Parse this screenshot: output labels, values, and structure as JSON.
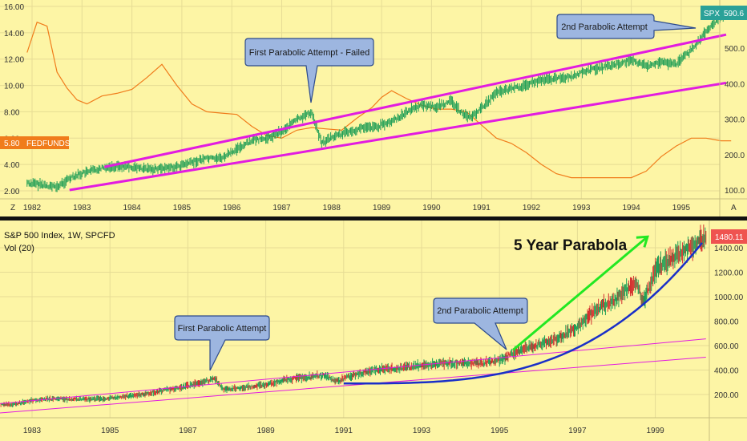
{
  "colors": {
    "background": "#fdf5a5",
    "grid": "#e6dc95",
    "candles": "#1e9e55",
    "fedfunds": "#f07c1b",
    "channel": "#e21ce0",
    "parabola": "#1a2fc8",
    "arrow": "#22e822",
    "callout_fill": "#9db6e0",
    "callout_stroke": "#2c4a8c",
    "spx_badge": "#2aa198",
    "last_price_badge": "#ef5350",
    "fedfunds_badge": "#f07c1b",
    "divider": "#111111"
  },
  "top": {
    "axis_corner_left": "Z",
    "axis_corner_right": "A",
    "spx_symbol": "SPX",
    "spx_value": "590.6",
    "fedfunds_value": "5.80",
    "fedfunds_label": "FEDFUNDS",
    "callout_first": "First Parabolic Attempt - Failed",
    "callout_second": "2nd Parabolic Attempt"
  },
  "bottom": {
    "legend_title": "S&P 500 Index, 1W, SPCFD",
    "legend_vol": "Vol (20)",
    "last_price": "1480.11",
    "headline": "5 Year Parabola",
    "callout_first": "First Parabolic Attempt",
    "callout_second": "2nd Parabolic Attempt"
  },
  "chart_data": [
    {
      "type": "line",
      "x_ticks": [
        "1982",
        "1983",
        "1984",
        "1985",
        "1986",
        "1987",
        "1988",
        "1989",
        "1990",
        "1991",
        "1992",
        "1993",
        "1994",
        "1995"
      ],
      "left_axis": {
        "ticks": [
          "2.00",
          "4.00",
          "6.00",
          "8.00",
          "10.00",
          "12.00",
          "14.00",
          "16.00"
        ],
        "ylim": [
          1.6,
          16.6
        ]
      },
      "right_axis": {
        "ticks": [
          "100.0",
          "200.0",
          "300.0",
          "400.0",
          "500.0"
        ],
        "ylim": [
          70,
          625
        ]
      },
      "series": [
        {
          "name": "FEDFUNDS",
          "axis": "left",
          "x": [
            1981.9,
            1982.1,
            1982.3,
            1982.5,
            1982.7,
            1982.9,
            1983.1,
            1983.4,
            1983.7,
            1984.0,
            1984.3,
            1984.6,
            1984.9,
            1985.2,
            1985.5,
            1985.8,
            1986.1,
            1986.4,
            1986.7,
            1987.0,
            1987.3,
            1987.6,
            1987.9,
            1988.2,
            1988.5,
            1988.8,
            1989.0,
            1989.2,
            1989.5,
            1989.8,
            1990.1,
            1990.4,
            1990.7,
            1991.0,
            1991.3,
            1991.6,
            1991.9,
            1992.2,
            1992.5,
            1992.8,
            1993.2,
            1993.6,
            1994.0,
            1994.3,
            1994.6,
            1994.9,
            1995.2,
            1995.5,
            1995.8,
            1996.0
          ],
          "values": [
            12.5,
            14.8,
            14.5,
            11.0,
            9.8,
            8.9,
            8.6,
            9.2,
            9.4,
            9.7,
            10.6,
            11.6,
            10.0,
            8.6,
            8.0,
            7.9,
            7.8,
            6.9,
            6.2,
            6.0,
            6.6,
            6.8,
            6.7,
            6.6,
            7.5,
            8.3,
            9.1,
            9.6,
            9.0,
            8.5,
            8.2,
            8.2,
            8.0,
            7.0,
            6.0,
            5.6,
            4.9,
            4.0,
            3.3,
            3.0,
            3.0,
            3.0,
            3.0,
            3.5,
            4.6,
            5.4,
            6.0,
            6.0,
            5.8,
            5.8
          ]
        },
        {
          "name": "SPX",
          "axis": "right",
          "x": [
            1981.9,
            1982.2,
            1982.5,
            1982.8,
            1983.1,
            1983.4,
            1983.7,
            1984.0,
            1984.3,
            1984.6,
            1984.9,
            1985.2,
            1985.5,
            1985.8,
            1986.1,
            1986.4,
            1986.7,
            1987.0,
            1987.3,
            1987.6,
            1987.8,
            1988.0,
            1988.3,
            1988.6,
            1988.9,
            1989.2,
            1989.5,
            1989.8,
            1990.1,
            1990.4,
            1990.6,
            1990.8,
            1991.0,
            1991.3,
            1991.6,
            1991.9,
            1992.2,
            1992.5,
            1992.8,
            1993.2,
            1993.6,
            1994.0,
            1994.3,
            1994.6,
            1994.9,
            1995.2,
            1995.5,
            1995.8
          ],
          "values": [
            120,
            115,
            108,
            138,
            150,
            162,
            168,
            164,
            158,
            162,
            165,
            178,
            190,
            190,
            215,
            240,
            245,
            265,
            298,
            320,
            232,
            248,
            262,
            275,
            278,
            292,
            320,
            340,
            335,
            350,
            318,
            305,
            330,
            375,
            385,
            395,
            410,
            415,
            420,
            440,
            450,
            465,
            450,
            460,
            455,
            495,
            545,
            590
          ]
        }
      ]
    },
    {
      "type": "line",
      "x_ticks": [
        "1983",
        "1985",
        "1987",
        "1989",
        "1991",
        "1993",
        "1995",
        "1997",
        "1999"
      ],
      "y_axis": {
        "ticks": [
          "200.00",
          "400.00",
          "600.00",
          "800.00",
          "1000.00",
          "1200.00",
          "1400.00"
        ],
        "ylim": [
          -40,
          1660
        ]
      },
      "series": [
        {
          "name": "S&P 500 Index",
          "x": [
            1982.0,
            1982.5,
            1983.0,
            1983.5,
            1984.0,
            1984.5,
            1985.0,
            1985.5,
            1986.0,
            1986.5,
            1987.0,
            1987.5,
            1987.7,
            1987.9,
            1988.5,
            1989.0,
            1989.5,
            1990.0,
            1990.5,
            1990.8,
            1991.0,
            1991.5,
            1992.0,
            1992.5,
            1993.0,
            1993.5,
            1994.0,
            1994.5,
            1995.0,
            1995.5,
            1996.0,
            1996.5,
            1997.0,
            1997.5,
            1998.0,
            1998.5,
            1998.7,
            1999.0,
            1999.5,
            2000.0,
            2000.3,
            2000.5
          ],
          "values": [
            120,
            118,
            150,
            165,
            162,
            160,
            170,
            190,
            210,
            240,
            270,
            310,
            330,
            240,
            260,
            280,
            320,
            340,
            355,
            310,
            330,
            380,
            410,
            415,
            440,
            450,
            460,
            455,
            480,
            560,
            610,
            660,
            750,
            900,
            980,
            1120,
            960,
            1220,
            1330,
            1420,
            1480,
            1470
          ]
        }
      ]
    }
  ]
}
